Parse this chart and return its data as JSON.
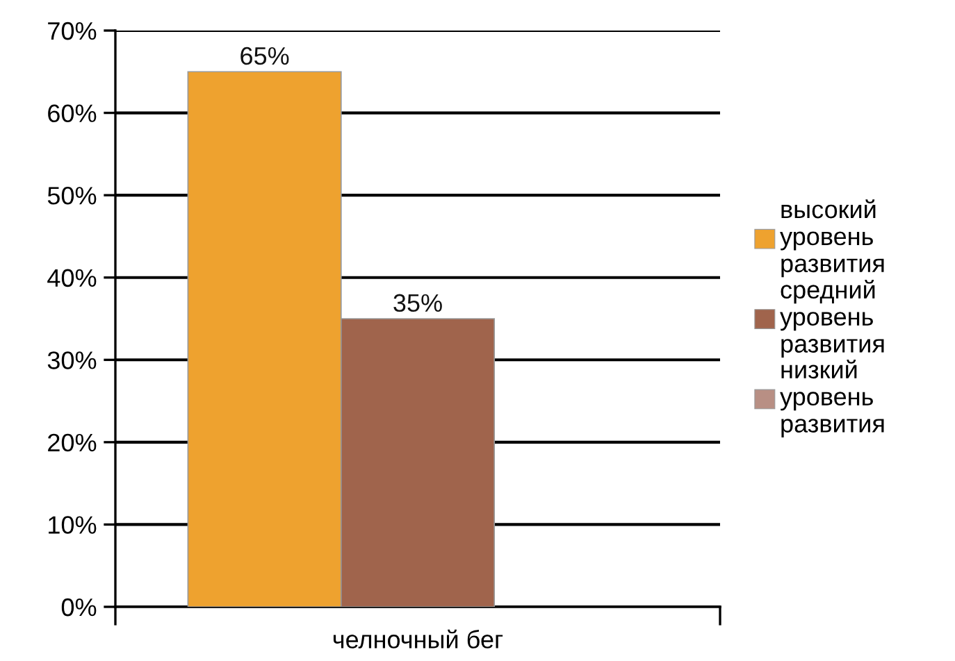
{
  "chart_data": {
    "type": "bar",
    "categories": [
      "челночный бег"
    ],
    "series": [
      {
        "name": "высокий уровень развития",
        "color": "#eea22f",
        "values": [
          65
        ],
        "value_labels": [
          "65%"
        ]
      },
      {
        "name": "средний уровень развития",
        "color": "#a0644c",
        "values": [
          35
        ],
        "value_labels": [
          "35%"
        ]
      },
      {
        "name": "низкий уровень развития",
        "color": "#b88f84",
        "values": [
          null
        ],
        "value_labels": [
          null
        ]
      }
    ],
    "ylim": [
      0,
      70
    ],
    "yticks": [
      {
        "value": 0,
        "label": "0%"
      },
      {
        "value": 10,
        "label": "10%"
      },
      {
        "value": 20,
        "label": "20%"
      },
      {
        "value": 30,
        "label": "30%"
      },
      {
        "value": 40,
        "label": "40%"
      },
      {
        "value": 50,
        "label": "50%"
      },
      {
        "value": 60,
        "label": "60%"
      },
      {
        "value": 70,
        "label": "70%"
      }
    ],
    "grid": "y",
    "legend": "right"
  }
}
